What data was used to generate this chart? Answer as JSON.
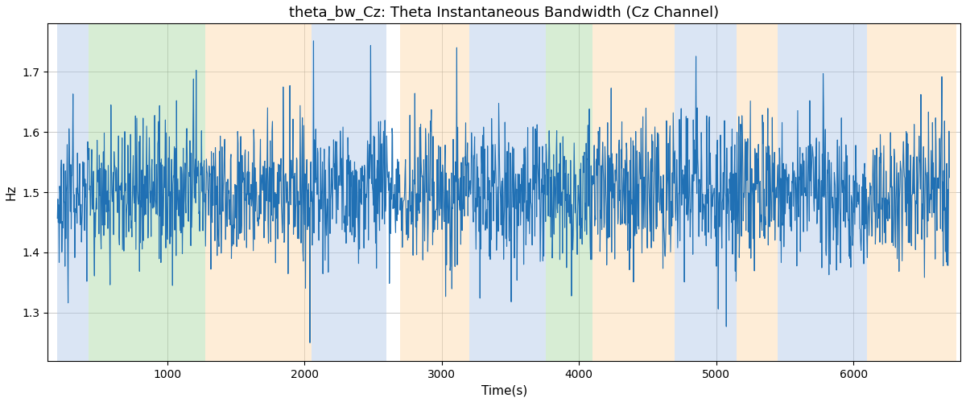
{
  "title": "theta_bw_Cz: Theta Instantaneous Bandwidth (Cz Channel)",
  "xlabel": "Time(s)",
  "ylabel": "Hz",
  "bg_bands": [
    {
      "xmin": 200,
      "xmax": 430,
      "color": "#aec6e8",
      "alpha": 0.45
    },
    {
      "xmin": 430,
      "xmax": 1280,
      "color": "#a8d8a0",
      "alpha": 0.45
    },
    {
      "xmin": 1280,
      "xmax": 2050,
      "color": "#fdd9a8",
      "alpha": 0.45
    },
    {
      "xmin": 2050,
      "xmax": 2600,
      "color": "#aec6e8",
      "alpha": 0.45
    },
    {
      "xmin": 2700,
      "xmax": 3200,
      "color": "#fdd9a8",
      "alpha": 0.45
    },
    {
      "xmin": 3200,
      "xmax": 3600,
      "color": "#aec6e8",
      "alpha": 0.45
    },
    {
      "xmin": 3600,
      "xmax": 3760,
      "color": "#aec6e8",
      "alpha": 0.45
    },
    {
      "xmin": 3760,
      "xmax": 4100,
      "color": "#a8d8a0",
      "alpha": 0.45
    },
    {
      "xmin": 4100,
      "xmax": 4700,
      "color": "#fdd9a8",
      "alpha": 0.45
    },
    {
      "xmin": 4700,
      "xmax": 5150,
      "color": "#aec6e8",
      "alpha": 0.45
    },
    {
      "xmin": 5150,
      "xmax": 5450,
      "color": "#fdd9a8",
      "alpha": 0.45
    },
    {
      "xmin": 5450,
      "xmax": 6100,
      "color": "#aec6e8",
      "alpha": 0.45
    },
    {
      "xmin": 6100,
      "xmax": 6750,
      "color": "#fdd9a8",
      "alpha": 0.45
    }
  ],
  "ylim": [
    1.22,
    1.78
  ],
  "xlim": [
    130,
    6780
  ],
  "yticks": [
    1.3,
    1.4,
    1.5,
    1.6,
    1.7
  ],
  "line_color": "#2070b4",
  "line_width": 0.8,
  "seed": 42,
  "n_points": 2000,
  "t_start": 200,
  "t_end": 6700,
  "mean": 1.5,
  "noise_std": 0.06,
  "slow_std": 0.025,
  "slow_sigma": 60,
  "spike_prob": 0.03,
  "spike_std": 0.08,
  "title_fontsize": 13
}
